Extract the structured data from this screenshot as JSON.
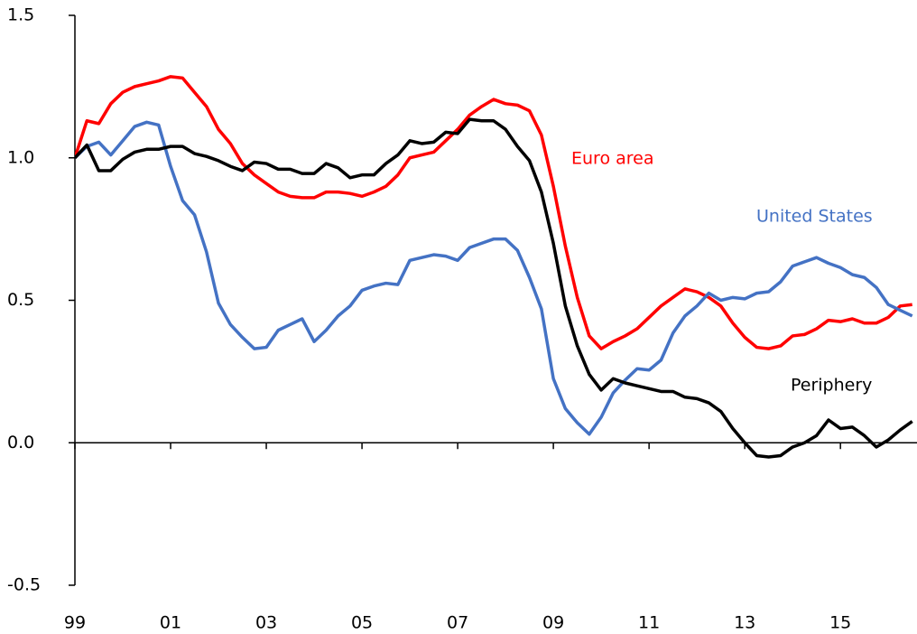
{
  "chart_data": {
    "type": "line",
    "x": [
      1999,
      1999.25,
      1999.5,
      1999.75,
      2000,
      2000.25,
      2000.5,
      2000.75,
      2001,
      2001.25,
      2001.5,
      2001.75,
      2002,
      2002.25,
      2002.5,
      2002.75,
      2003,
      2003.25,
      2003.5,
      2003.75,
      2004,
      2004.25,
      2004.5,
      2004.75,
      2005,
      2005.25,
      2005.5,
      2005.75,
      2006,
      2006.25,
      2006.5,
      2006.75,
      2007,
      2007.25,
      2007.5,
      2007.75,
      2008,
      2008.25,
      2008.5,
      2008.75,
      2009,
      2009.25,
      2009.5,
      2009.75,
      2010,
      2010.25,
      2010.5,
      2010.75,
      2011,
      2011.25,
      2011.5,
      2011.75,
      2012,
      2012.25,
      2012.5,
      2012.75,
      2013,
      2013.25,
      2013.5,
      2013.75,
      2014,
      2014.25,
      2014.5,
      2014.75,
      2015,
      2015.25,
      2015.5,
      2015.75,
      2016,
      2016.25,
      2016.5
    ],
    "series": [
      {
        "name": "Euro area",
        "color": "#ff0000",
        "values": [
          1.0,
          1.13,
          1.12,
          1.19,
          1.23,
          1.25,
          1.26,
          1.27,
          1.285,
          1.28,
          1.23,
          1.18,
          1.1,
          1.05,
          0.98,
          0.94,
          0.91,
          0.88,
          0.865,
          0.86,
          0.86,
          0.88,
          0.88,
          0.875,
          0.865,
          0.88,
          0.9,
          0.94,
          1.0,
          1.01,
          1.02,
          1.06,
          1.1,
          1.15,
          1.18,
          1.205,
          1.19,
          1.185,
          1.165,
          1.08,
          0.9,
          0.69,
          0.51,
          0.375,
          0.33,
          0.355,
          0.375,
          0.4,
          0.44,
          0.48,
          0.51,
          0.54,
          0.53,
          0.51,
          0.48,
          0.42,
          0.37,
          0.335,
          0.33,
          0.34,
          0.375,
          0.38,
          0.4,
          0.43,
          0.425,
          0.435,
          0.42,
          0.42,
          0.44,
          0.48,
          0.485
        ]
      },
      {
        "name": "United States",
        "color": "#4472c4",
        "values": [
          1.0,
          1.04,
          1.055,
          1.01,
          1.06,
          1.11,
          1.125,
          1.115,
          0.97,
          0.85,
          0.8,
          0.67,
          0.49,
          0.415,
          0.37,
          0.33,
          0.335,
          0.395,
          0.415,
          0.435,
          0.355,
          0.395,
          0.445,
          0.48,
          0.535,
          0.55,
          0.56,
          0.555,
          0.64,
          0.65,
          0.66,
          0.655,
          0.64,
          0.685,
          0.7,
          0.715,
          0.715,
          0.675,
          0.58,
          0.47,
          0.225,
          0.12,
          0.07,
          0.03,
          0.09,
          0.175,
          0.22,
          0.26,
          0.255,
          0.29,
          0.385,
          0.445,
          0.48,
          0.525,
          0.5,
          0.51,
          0.505,
          0.525,
          0.53,
          0.565,
          0.62,
          0.635,
          0.65,
          0.63,
          0.615,
          0.59,
          0.58,
          0.545,
          0.485,
          0.465,
          0.445
        ]
      },
      {
        "name": "Periphery",
        "color": "#000000",
        "values": [
          1.0,
          1.045,
          0.955,
          0.955,
          0.995,
          1.02,
          1.03,
          1.03,
          1.04,
          1.04,
          1.015,
          1.005,
          0.99,
          0.97,
          0.955,
          0.985,
          0.98,
          0.96,
          0.96,
          0.945,
          0.945,
          0.98,
          0.965,
          0.93,
          0.94,
          0.94,
          0.98,
          1.01,
          1.06,
          1.05,
          1.055,
          1.09,
          1.085,
          1.135,
          1.13,
          1.13,
          1.1,
          1.04,
          0.99,
          0.88,
          0.7,
          0.48,
          0.34,
          0.24,
          0.185,
          0.225,
          0.21,
          0.2,
          0.19,
          0.18,
          0.18,
          0.16,
          0.155,
          0.14,
          0.11,
          0.05,
          0.0,
          -0.045,
          -0.05,
          -0.045,
          -0.015,
          0.0,
          0.025,
          0.08,
          0.05,
          0.055,
          0.025,
          -0.015,
          0.01,
          0.045,
          0.075
        ]
      }
    ],
    "xlim": [
      1999,
      2016.6
    ],
    "xticks": [
      {
        "value": 1999,
        "label": "99"
      },
      {
        "value": 2001,
        "label": "01"
      },
      {
        "value": 2003,
        "label": "03"
      },
      {
        "value": 2005,
        "label": "05"
      },
      {
        "value": 2007,
        "label": "07"
      },
      {
        "value": 2009,
        "label": "09"
      },
      {
        "value": 2011,
        "label": "11"
      },
      {
        "value": 2013,
        "label": "13"
      },
      {
        "value": 2015,
        "label": "15"
      }
    ],
    "ylim": [
      -0.5,
      1.5
    ],
    "yticks": [
      -0.5,
      {
        "value": 0,
        "label": "0.0"
      },
      0.5,
      {
        "value": 1,
        "label": "1.0"
      },
      1.5
    ]
  }
}
